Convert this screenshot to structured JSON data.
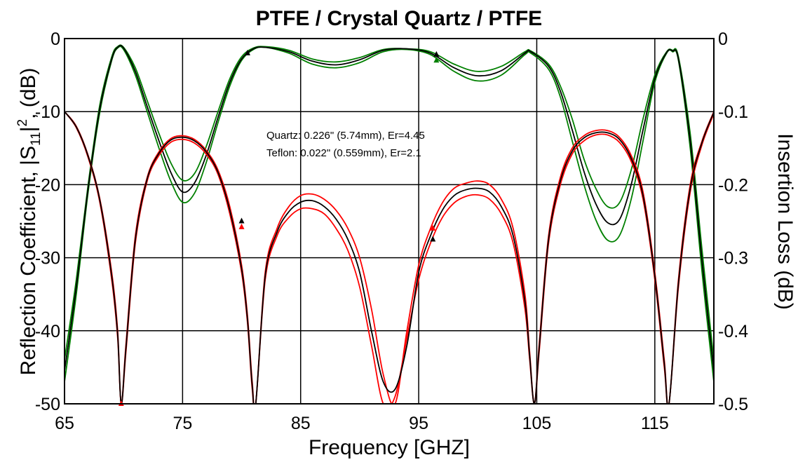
{
  "chart_data": {
    "type": "line",
    "title": "PTFE / Crystal Quartz / PTFE",
    "xlabel": "Frequency [GHZ]",
    "ylabel_left_prefix": "Reflection Coefficient, |S",
    "ylabel_left_sub": "11",
    "ylabel_left_bar": "|",
    "ylabel_left_sup": "2",
    "ylabel_left_suffix": ", (dB)",
    "ylabel_right": "Insertion Loss (dB)",
    "xlim": [
      65,
      120
    ],
    "ylim_left": [
      -50,
      0
    ],
    "ylim_right": [
      -0.5,
      0
    ],
    "x_ticks": [
      65,
      75,
      85,
      95,
      105,
      115
    ],
    "x_tick_labels": [
      "65",
      "75",
      "85",
      "95",
      "105",
      "115"
    ],
    "y_ticks_left": [
      0,
      -10,
      -20,
      -30,
      -40,
      -50
    ],
    "y_tick_labels_left": [
      "0",
      "-10",
      "-20",
      "-30",
      "-40",
      "-50"
    ],
    "y_ticks_right": [
      0,
      -0.1,
      -0.2,
      -0.3,
      -0.4,
      -0.5
    ],
    "y_tick_labels_right": [
      "0",
      "-0.1",
      "-0.2",
      "-0.3",
      "-0.4",
      "-0.5"
    ],
    "grid": true,
    "annotations": [
      "Quartz: 0.226\" (5.74mm), Er=4.45",
      "Teflon: 0.022\" (0.559mm), Er=2.1"
    ],
    "colors": {
      "red": "#ff0000",
      "green": "#008000",
      "black": "#000000"
    },
    "series": [
      {
        "color": "#008000",
        "axis": "right",
        "x": [
          65,
          66,
          67,
          68,
          69,
          69.5,
          70,
          71,
          72,
          73,
          74,
          75,
          76,
          77,
          78,
          79,
          80,
          81,
          82,
          84,
          86,
          88,
          90,
          92,
          94,
          96,
          98,
          100,
          102,
          104,
          104.5,
          106,
          107,
          108,
          109,
          110,
          111,
          112,
          113,
          114,
          115,
          116,
          116.5,
          117,
          118,
          119,
          120
        ],
        "y": [
          -0.47,
          -0.35,
          -0.21,
          -0.1,
          -0.03,
          -0.013,
          -0.015,
          -0.05,
          -0.1,
          -0.15,
          -0.195,
          -0.224,
          -0.212,
          -0.17,
          -0.115,
          -0.065,
          -0.03,
          -0.015,
          -0.012,
          -0.02,
          -0.035,
          -0.04,
          -0.033,
          -0.018,
          -0.015,
          -0.022,
          -0.045,
          -0.058,
          -0.05,
          -0.022,
          -0.02,
          -0.042,
          -0.08,
          -0.14,
          -0.2,
          -0.248,
          -0.276,
          -0.27,
          -0.22,
          -0.14,
          -0.06,
          -0.02,
          -0.018,
          -0.03,
          -0.15,
          -0.32,
          -0.47
        ]
      },
      {
        "color": "#008000",
        "axis": "right",
        "x": [
          65,
          66,
          67,
          68,
          69,
          69.5,
          70,
          71,
          72,
          73,
          74,
          75,
          76,
          77,
          78,
          79,
          80,
          81,
          82,
          84,
          86,
          88,
          90,
          92,
          94,
          96,
          98,
          100,
          102,
          104,
          104.5,
          106,
          107,
          108,
          109,
          110,
          111,
          112,
          113,
          114,
          115,
          116,
          116.5,
          117,
          118,
          119,
          120
        ],
        "y": [
          -0.44,
          -0.33,
          -0.2,
          -0.09,
          -0.025,
          -0.011,
          -0.012,
          -0.04,
          -0.085,
          -0.13,
          -0.17,
          -0.194,
          -0.185,
          -0.148,
          -0.1,
          -0.055,
          -0.025,
          -0.013,
          -0.011,
          -0.016,
          -0.028,
          -0.032,
          -0.026,
          -0.015,
          -0.014,
          -0.018,
          -0.035,
          -0.045,
          -0.038,
          -0.018,
          -0.017,
          -0.035,
          -0.065,
          -0.11,
          -0.165,
          -0.205,
          -0.23,
          -0.225,
          -0.18,
          -0.11,
          -0.05,
          -0.018,
          -0.016,
          -0.025,
          -0.13,
          -0.29,
          -0.44
        ]
      },
      {
        "color": "#000000",
        "axis": "right",
        "x": [
          65,
          66,
          67,
          68,
          69,
          69.5,
          70,
          71,
          72,
          73,
          74,
          75,
          76,
          77,
          78,
          79,
          80,
          81,
          82,
          84,
          86,
          88,
          90,
          92,
          94,
          96,
          98,
          100,
          102,
          104,
          104.5,
          106,
          107,
          108,
          109,
          110,
          111,
          112,
          113,
          114,
          115,
          116,
          116.5,
          117,
          118,
          119,
          120
        ],
        "y": [
          -0.455,
          -0.34,
          -0.205,
          -0.095,
          -0.028,
          -0.012,
          -0.013,
          -0.045,
          -0.093,
          -0.14,
          -0.183,
          -0.21,
          -0.198,
          -0.16,
          -0.108,
          -0.06,
          -0.028,
          -0.014,
          -0.012,
          -0.018,
          -0.031,
          -0.036,
          -0.029,
          -0.016,
          -0.014,
          -0.02,
          -0.04,
          -0.051,
          -0.044,
          -0.02,
          -0.018,
          -0.038,
          -0.072,
          -0.125,
          -0.182,
          -0.226,
          -0.252,
          -0.248,
          -0.2,
          -0.125,
          -0.055,
          -0.019,
          -0.017,
          -0.028,
          -0.14,
          -0.305,
          -0.455
        ]
      },
      {
        "color": "#ff0000",
        "axis": "left",
        "x": [
          65,
          66,
          67,
          68,
          69,
          69.5,
          69.8,
          70.2,
          71,
          72,
          73,
          74,
          75,
          76,
          77,
          78,
          79,
          80,
          80.5,
          80.9,
          81.2,
          82,
          83,
          84,
          85,
          86,
          87,
          88,
          89,
          90,
          91,
          92,
          93,
          94,
          95,
          96,
          97,
          98,
          99,
          100,
          101,
          102,
          103,
          104,
          104.4,
          104.8,
          105.2,
          106,
          107,
          108,
          109,
          110,
          111,
          112,
          113,
          114,
          115,
          115.8,
          116.2,
          117,
          118,
          119,
          120
        ],
        "y": [
          -10,
          -12,
          -16,
          -22,
          -32,
          -40,
          -50,
          -42,
          -27,
          -19,
          -15.5,
          -13.7,
          -13.3,
          -13.8,
          -15.3,
          -18,
          -23,
          -31,
          -38,
          -47,
          -50,
          -32,
          -26,
          -23,
          -21.5,
          -21.3,
          -22,
          -23.5,
          -26,
          -30,
          -37,
          -46,
          -50,
          -40,
          -31,
          -26,
          -22.5,
          -20.5,
          -19.8,
          -19.5,
          -20,
          -22,
          -26,
          -35,
          -43,
          -50,
          -42,
          -27,
          -19,
          -15,
          -13.3,
          -12.6,
          -12.6,
          -13.5,
          -16,
          -21,
          -32,
          -44,
          -50,
          -33,
          -20,
          -14,
          -10
        ]
      },
      {
        "color": "#ff0000",
        "axis": "left",
        "x": [
          65,
          66,
          67,
          68,
          69,
          69.5,
          69.8,
          70.2,
          71,
          72,
          73,
          74,
          75,
          76,
          77,
          78,
          79,
          80,
          80.5,
          80.9,
          81.2,
          82,
          83,
          84,
          85,
          86,
          87,
          88,
          89,
          90,
          91,
          92,
          93,
          94,
          95,
          96,
          97,
          98,
          99,
          100,
          101,
          102,
          103,
          104,
          104.4,
          104.8,
          105.2,
          106,
          107,
          108,
          109,
          110,
          111,
          112,
          113,
          114,
          115,
          115.8,
          116.2,
          117,
          118,
          119,
          120
        ],
        "y": [
          -10,
          -12.2,
          -16.3,
          -22.5,
          -33,
          -41,
          -50,
          -43,
          -28,
          -19.5,
          -16,
          -14.2,
          -13.8,
          -14.3,
          -15.8,
          -18.6,
          -24,
          -32,
          -39,
          -48,
          -50,
          -33,
          -27,
          -24.5,
          -23.3,
          -23.3,
          -24,
          -26,
          -29,
          -34,
          -42,
          -50,
          -49,
          -41,
          -33,
          -28,
          -24.5,
          -22.5,
          -21.6,
          -21.4,
          -22,
          -24,
          -28,
          -37,
          -44,
          -50,
          -43,
          -28,
          -20,
          -15.8,
          -14,
          -13.2,
          -13.2,
          -14.2,
          -16.8,
          -22,
          -33,
          -45,
          -50,
          -34,
          -21,
          -14.5,
          -10.3
        ]
      },
      {
        "color": "#000000",
        "axis": "left",
        "x": [
          65,
          66,
          67,
          68,
          69,
          69.5,
          69.8,
          70.2,
          71,
          72,
          73,
          74,
          75,
          76,
          77,
          78,
          79,
          80,
          80.5,
          80.9,
          81.2,
          82,
          83,
          84,
          85,
          86,
          87,
          88,
          89,
          90,
          91,
          92,
          93,
          94,
          95,
          96,
          97,
          98,
          99,
          100,
          101,
          102,
          103,
          104,
          104.4,
          104.8,
          105.2,
          106,
          107,
          108,
          109,
          110,
          111,
          112,
          113,
          114,
          115,
          115.8,
          116.2,
          117,
          118,
          119,
          120
        ],
        "y": [
          -10,
          -12.1,
          -16.1,
          -22.2,
          -32.5,
          -40.5,
          -50,
          -42.5,
          -27.5,
          -19.2,
          -15.7,
          -13.9,
          -13.5,
          -14,
          -15.5,
          -18.3,
          -23.5,
          -31.5,
          -38.5,
          -47.5,
          -50,
          -32.5,
          -26.5,
          -23.7,
          -22.4,
          -22.2,
          -23,
          -24.7,
          -27.5,
          -32,
          -40,
          -47,
          -48,
          -42,
          -32,
          -27,
          -23.5,
          -21.5,
          -20.7,
          -20.5,
          -21,
          -23,
          -27,
          -36,
          -43.5,
          -50,
          -42.5,
          -27.5,
          -19.5,
          -15.4,
          -13.6,
          -12.9,
          -12.9,
          -13.8,
          -16.4,
          -21.5,
          -32.5,
          -44.5,
          -50,
          -33.5,
          -20.5,
          -14.2,
          -10.1
        ]
      }
    ],
    "markers": [
      {
        "x": 80,
        "y": -25,
        "color": "#000000",
        "axis": "left"
      },
      {
        "x": 80,
        "y": -25.8,
        "color": "#ff0000",
        "axis": "left"
      },
      {
        "x": 96.2,
        "y": -27.5,
        "color": "#000000",
        "axis": "left"
      },
      {
        "x": 96.2,
        "y": -26,
        "color": "#ff0000",
        "axis": "left"
      },
      {
        "x": 69.8,
        "y": -50,
        "color": "#ff0000",
        "axis": "left"
      },
      {
        "x": 80.5,
        "y": -0.02,
        "color": "#000000",
        "axis": "right"
      },
      {
        "x": 96.5,
        "y": -0.022,
        "color": "#000000",
        "axis": "right"
      },
      {
        "x": 96.5,
        "y": -0.03,
        "color": "#008000",
        "axis": "right"
      }
    ]
  }
}
